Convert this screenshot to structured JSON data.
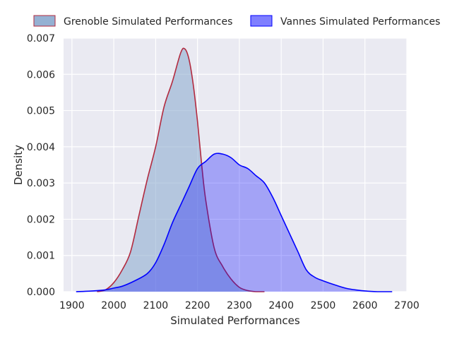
{
  "chart_data": {
    "type": "area",
    "title": "",
    "xlabel": "Simulated Performances",
    "ylabel": "Density",
    "xlim": [
      1880,
      2700
    ],
    "ylim": [
      0,
      0.007
    ],
    "xticks": [
      1900,
      2000,
      2100,
      2200,
      2300,
      2400,
      2500,
      2600,
      2700
    ],
    "yticks": [
      "0.000",
      "0.001",
      "0.002",
      "0.003",
      "0.004",
      "0.005",
      "0.006",
      "0.007"
    ],
    "grid": true,
    "legend": "top-outside",
    "background": "#eaeaf2",
    "series": [
      {
        "name": "Grenoble Simulated Performances",
        "fill": "#8fadd1",
        "fill_opacity": 0.6,
        "stroke": "#b22a3f",
        "x": [
          1960,
          1980,
          2000,
          2020,
          2040,
          2060,
          2080,
          2100,
          2120,
          2140,
          2160,
          2170,
          2180,
          2190,
          2200,
          2210,
          2220,
          2240,
          2260,
          2280,
          2300,
          2320,
          2340,
          2360
        ],
        "y": [
          0.0,
          5e-05,
          0.00025,
          0.0006,
          0.0011,
          0.0021,
          0.0031,
          0.004,
          0.0051,
          0.0058,
          0.0066,
          0.0067,
          0.0064,
          0.0057,
          0.0047,
          0.0035,
          0.0025,
          0.0012,
          0.0007,
          0.00035,
          0.00012,
          3e-05,
          0.0,
          0.0
        ]
      },
      {
        "name": "Vannes Simulated Performances",
        "fill": "#0000ff",
        "fill_opacity": 0.3,
        "stroke": "#0000ff",
        "x": [
          1910,
          1950,
          1980,
          2000,
          2020,
          2050,
          2080,
          2100,
          2120,
          2140,
          2160,
          2180,
          2200,
          2220,
          2240,
          2260,
          2280,
          2300,
          2320,
          2340,
          2360,
          2380,
          2400,
          2420,
          2440,
          2460,
          2480,
          2500,
          2530,
          2560,
          2600,
          2630,
          2665
        ],
        "y": [
          0.0,
          2e-05,
          5e-05,
          0.0001,
          0.00015,
          0.0003,
          0.0005,
          0.0008,
          0.0013,
          0.0019,
          0.0024,
          0.0029,
          0.0034,
          0.0036,
          0.0038,
          0.0038,
          0.0037,
          0.0035,
          0.0034,
          0.0032,
          0.003,
          0.0026,
          0.0021,
          0.0016,
          0.0011,
          0.0006,
          0.0004,
          0.0003,
          0.00018,
          8e-05,
          2e-05,
          0.0,
          0.0
        ]
      }
    ]
  }
}
